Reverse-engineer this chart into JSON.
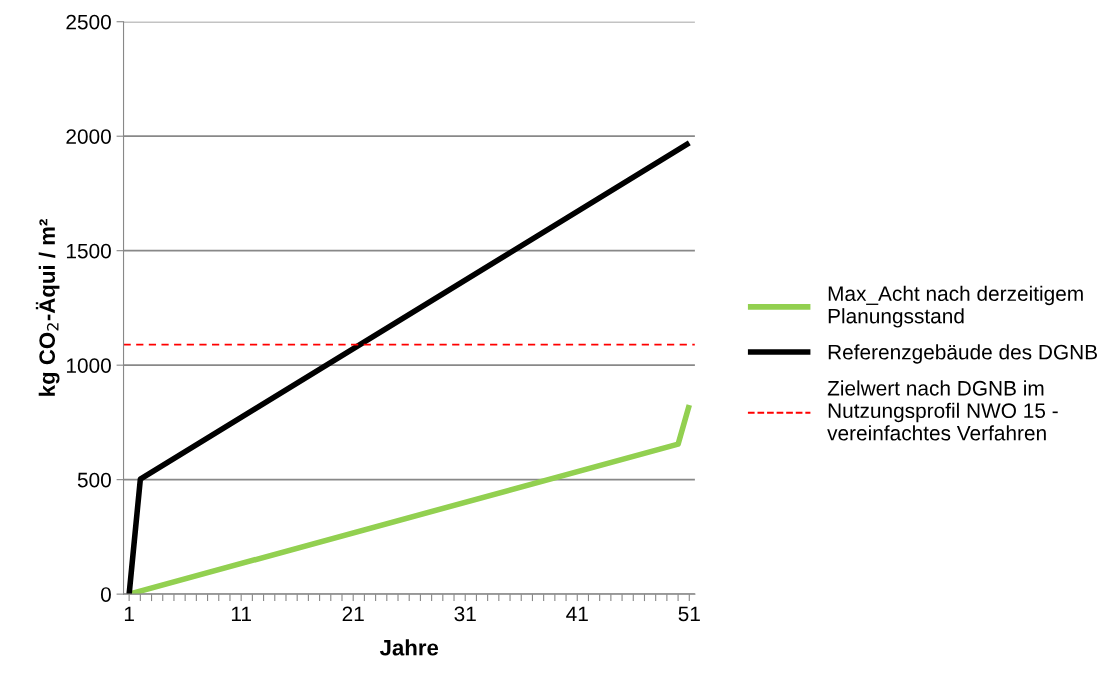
{
  "chart_data": {
    "type": "line",
    "xlabel": "Jahre",
    "ylabel": "kg CO$_{2}$-Äqui / m²",
    "series": [
      {
        "name": "Max_Acht nach derzeitigem Planungsstand",
        "color": "#92d050",
        "x": [
          1,
          50,
          51
        ],
        "values": [
          0,
          655,
          826
        ]
      },
      {
        "name": "Referenzgebäude des DGNB",
        "color": "#000000",
        "x": [
          1,
          2,
          51
        ],
        "values": [
          0,
          502,
          1971
        ]
      }
    ],
    "ref_lines": [
      {
        "axis": "y",
        "value": 1090,
        "label": "Zielwert nach DGNB im Nutzungsprofil NWO 15 - vereinfachtes Verfahren",
        "color": "#ff0000",
        "line_style": "dashed"
      }
    ],
    "xlim": [
      0.5,
      51.5
    ],
    "xticks": [
      1,
      {
        "value": 2,
        "label": null
      },
      {
        "value": 3,
        "label": null
      },
      {
        "value": 4,
        "label": null
      },
      {
        "value": 5,
        "label": null
      },
      {
        "value": 6,
        "label": null
      },
      {
        "value": 7,
        "label": null
      },
      {
        "value": 8,
        "label": null
      },
      {
        "value": 9,
        "label": null
      },
      {
        "value": 10,
        "label": null
      },
      11,
      {
        "value": 12,
        "label": null
      },
      {
        "value": 13,
        "label": null
      },
      {
        "value": 14,
        "label": null
      },
      {
        "value": 15,
        "label": null
      },
      {
        "value": 16,
        "label": null
      },
      {
        "value": 17,
        "label": null
      },
      {
        "value": 18,
        "label": null
      },
      {
        "value": 19,
        "label": null
      },
      {
        "value": 20,
        "label": null
      },
      21,
      {
        "value": 22,
        "label": null
      },
      {
        "value": 23,
        "label": null
      },
      {
        "value": 24,
        "label": null
      },
      {
        "value": 25,
        "label": null
      },
      {
        "value": 26,
        "label": null
      },
      {
        "value": 27,
        "label": null
      },
      {
        "value": 28,
        "label": null
      },
      {
        "value": 29,
        "label": null
      },
      {
        "value": 30,
        "label": null
      },
      31,
      {
        "value": 32,
        "label": null
      },
      {
        "value": 33,
        "label": null
      },
      {
        "value": 34,
        "label": null
      },
      {
        "value": 35,
        "label": null
      },
      {
        "value": 36,
        "label": null
      },
      {
        "value": 37,
        "label": null
      },
      {
        "value": 38,
        "label": null
      },
      {
        "value": 39,
        "label": null
      },
      {
        "value": 40,
        "label": null
      },
      41,
      {
        "value": 42,
        "label": null
      },
      {
        "value": 43,
        "label": null
      },
      {
        "value": 44,
        "label": null
      },
      {
        "value": 45,
        "label": null
      },
      {
        "value": 46,
        "label": null
      },
      {
        "value": 47,
        "label": null
      },
      {
        "value": 48,
        "label": null
      },
      {
        "value": 49,
        "label": null
      },
      {
        "value": 50,
        "label": null
      },
      51
    ],
    "ylim": [
      0,
      2500
    ],
    "yticks": [
      0,
      500,
      1000,
      1500,
      2000,
      2500
    ],
    "grid": "y",
    "legend": "right",
    "marker": "none",
    "line_style": "solid"
  }
}
